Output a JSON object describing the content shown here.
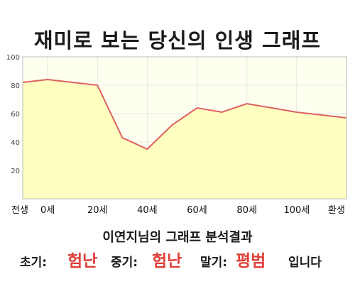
{
  "title": "재미로 보는 당신의 인생 그래프",
  "subtitle": "이연지님의 그래프 분석결과",
  "result": {
    "early_label": "초기:",
    "early_value": "험난",
    "mid_label": "중기:",
    "mid_value": "험난",
    "late_label": "말기:",
    "late_value": "평범",
    "ending": "입니다"
  },
  "colors": {
    "line": "#e06060",
    "fill": "#ffffc0",
    "plot_bg": "#fffff0",
    "highlight": "#e0403a"
  },
  "chart_data": {
    "type": "area",
    "x_categories": [
      "전생",
      "0세",
      "20세",
      "40세",
      "60세",
      "80세",
      "100세",
      "환생"
    ],
    "points": [
      {
        "x": -10,
        "y": 82
      },
      {
        "x": 0,
        "y": 84
      },
      {
        "x": 20,
        "y": 80
      },
      {
        "x": 30,
        "y": 43
      },
      {
        "x": 40,
        "y": 35
      },
      {
        "x": 50,
        "y": 52
      },
      {
        "x": 60,
        "y": 64
      },
      {
        "x": 70,
        "y": 61
      },
      {
        "x": 80,
        "y": 67
      },
      {
        "x": 90,
        "y": 64
      },
      {
        "x": 100,
        "y": 61
      },
      {
        "x": 120,
        "y": 57
      }
    ],
    "yticks": [
      20,
      40,
      60,
      80,
      100
    ],
    "ylim": [
      0,
      100
    ],
    "grid": true
  }
}
